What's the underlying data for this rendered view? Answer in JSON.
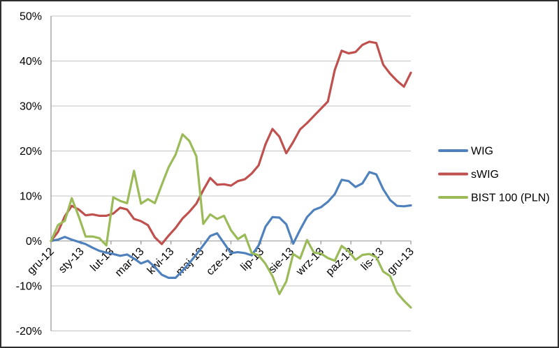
{
  "chart_data": {
    "type": "line",
    "title": "",
    "xlabel": "",
    "ylabel": "",
    "grid": true,
    "legend_position": "right",
    "x_axis": {
      "tick_labels": [
        "gru-12",
        "sty-13",
        "lut-13",
        "mar-13",
        "kwi-13",
        "maj-13",
        "cze-13",
        "lip-13",
        "sie-13",
        "wrz-13",
        "paź-13",
        "lis-13",
        "gru-13"
      ],
      "sampling": "weekly"
    },
    "y_axis": {
      "unit": "%",
      "range": [
        -20,
        50
      ],
      "tick_values": [
        50,
        40,
        30,
        20,
        10,
        0,
        -10,
        -20
      ],
      "tick_labels": [
        "50%",
        "40%",
        "30%",
        "20%",
        "10%",
        "0%",
        "-10%",
        "-20%"
      ]
    },
    "series": [
      {
        "name": "WIG",
        "color": "#4F81BD",
        "values": [
          0,
          0.3,
          0.9,
          0.3,
          -0.2,
          -0.7,
          -1.5,
          -2.2,
          -2.6,
          -2.9,
          -3.3,
          -3.0,
          -3.9,
          -5.0,
          -4.4,
          -5.8,
          -7.5,
          -8.2,
          -8.2,
          -6.6,
          -4.9,
          -3.0,
          -1.0,
          1.1,
          1.7,
          -0.5,
          -2.7,
          -2.5,
          -2.7,
          -3.2,
          -1.0,
          3.2,
          5.3,
          5.2,
          3.7,
          -0.6,
          2.5,
          5.3,
          6.9,
          7.5,
          8.7,
          10.4,
          13.6,
          13.3,
          12.0,
          12.8,
          15.3,
          14.8,
          11.5,
          9.1,
          7.8,
          7.7,
          7.9
        ]
      },
      {
        "name": "sWIG",
        "color": "#C0504D",
        "values": [
          0,
          2.0,
          5.5,
          7.8,
          7.0,
          5.7,
          5.9,
          5.6,
          5.6,
          6.1,
          7.4,
          7.0,
          4.9,
          4.4,
          3.5,
          0.8,
          -0.7,
          1.2,
          2.9,
          5.0,
          6.5,
          8.3,
          11.3,
          14.0,
          12.5,
          12.6,
          12.3,
          13.3,
          13.7,
          15.0,
          16.8,
          21.5,
          24.9,
          23.2,
          19.5,
          22.0,
          24.8,
          26.2,
          27.8,
          29.4,
          31.0,
          38.0,
          42.3,
          41.7,
          42.0,
          43.6,
          44.3,
          44.0,
          39.2,
          37.2,
          35.6,
          34.3,
          37.4
        ]
      },
      {
        "name": "BIST 100 (PLN)",
        "color": "#9BBB59",
        "values": [
          0,
          3.5,
          4.5,
          9.5,
          5.5,
          1.0,
          1.0,
          0.6,
          -1.0,
          9.7,
          8.9,
          8.4,
          15.6,
          8.3,
          9.3,
          8.4,
          12.5,
          16.4,
          19.2,
          23.7,
          22.2,
          18.8,
          3.8,
          5.9,
          4.9,
          5.6,
          2.4,
          0.4,
          1.4,
          -2.7,
          -3.2,
          -5.1,
          -7.8,
          -11.8,
          -9.0,
          -2.9,
          -3.9,
          0.2,
          -2.6,
          -2.8,
          -3.8,
          -4.4,
          -1.1,
          -2.3,
          -4.2,
          -3.1,
          -2.9,
          -3.6,
          -6.8,
          -7.8,
          -11.5,
          -13.3,
          -14.8
        ]
      }
    ]
  },
  "style_colors": {
    "gridline": "#c3c3c3",
    "axis": "#9a9a9a",
    "tick": "#9a9a9a",
    "label_text": "#000000",
    "background": "#ffffff",
    "frame_border": "#2f2f2f"
  }
}
